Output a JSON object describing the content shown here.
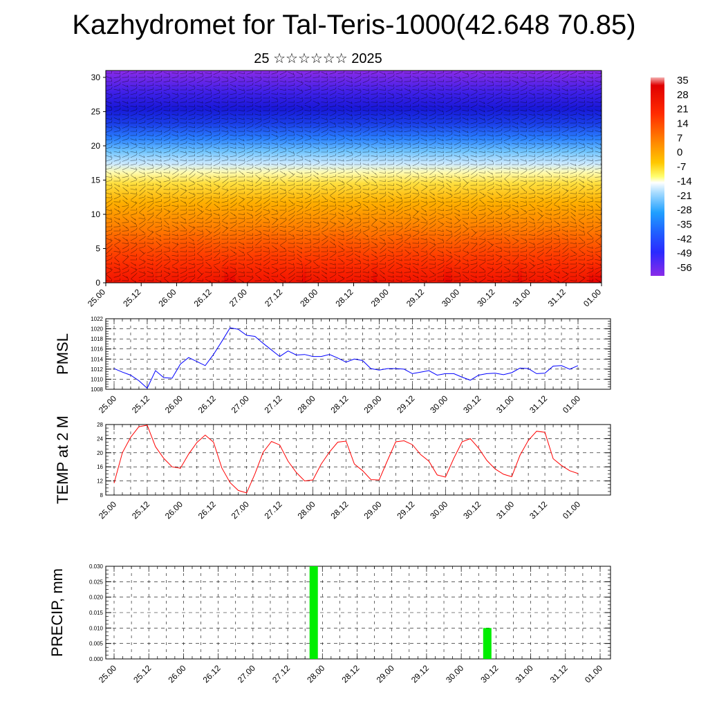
{
  "title": "Kazhydromet for Tal-Teris-1000(42.648 70.85)",
  "subtitle": "25 ☆☆☆☆☆☆ 2025",
  "chart_data": [
    {
      "type": "heatmap",
      "name": "temperature-wind-cross-section",
      "xlabel": "",
      "ylabel": "",
      "x_ticks": [
        "25.00",
        "25.12",
        "26.00",
        "26.12",
        "27.00",
        "27.12",
        "28.00",
        "28.12",
        "29.00",
        "29.12",
        "30.00",
        "30.12",
        "31.00",
        "31.12",
        "01.00"
      ],
      "y_ticks": [
        0,
        5,
        10,
        15,
        20,
        25,
        30
      ],
      "ylim": [
        0,
        31
      ],
      "colorbar_labels": [
        "35",
        "28",
        "21",
        "14",
        "7",
        "0",
        "-7",
        "-14",
        "-21",
        "-28",
        "-35",
        "-42",
        "-49",
        "-56"
      ],
      "colorbar_range": [
        -60,
        38
      ],
      "colors": [
        "#7a1fe6",
        "#2020ff",
        "#2a7dff",
        "#bfe4ff",
        "#ffff9e",
        "#ffd000",
        "#ff9a00",
        "#ff6a00",
        "#ff1a00",
        "#e00000"
      ],
      "vectors": "wind barbs overlay"
    },
    {
      "type": "line",
      "ylabel": "PMSL",
      "ylim": [
        1008,
        1022
      ],
      "y_ticks": [
        1008,
        1010,
        1012,
        1014,
        1016,
        1018,
        1020,
        1022
      ],
      "x_ticks": [
        "25.00",
        "25.12",
        "26.00",
        "26.12",
        "27.00",
        "27.12",
        "28.00",
        "28.12",
        "29.00",
        "29.12",
        "30.00",
        "30.12",
        "31.00",
        "31.12",
        "01.00"
      ],
      "line_color": "#0000ff",
      "series": [
        {
          "values": [
            1012.1,
            1011.4,
            1010.8,
            1009.7,
            1008.2,
            1011.7,
            1010.3,
            1010.2,
            1013.0,
            1014.3,
            1013.5,
            1012.7,
            1014.9,
            1017.5,
            1020.2,
            1019.9,
            1018.7,
            1018.5,
            1017.1,
            1015.8,
            1014.5,
            1015.6,
            1014.8,
            1014.9,
            1014.5,
            1014.5,
            1014.9,
            1014.2,
            1013.4,
            1014.0,
            1013.7,
            1012.1,
            1011.8,
            1012.1,
            1012.1,
            1012.0,
            1011.1,
            1011.4,
            1011.7,
            1010.8,
            1011.1,
            1011.1,
            1010.4,
            1009.8,
            1010.8,
            1011.1,
            1011.2,
            1010.9,
            1011.3,
            1012.2,
            1012.1,
            1011.1,
            1011.2,
            1012.6,
            1012.7,
            1012.0,
            1012.7
          ]
        }
      ]
    },
    {
      "type": "line",
      "ylabel": "TEMP at 2 M",
      "ylim": [
        8,
        28
      ],
      "y_ticks": [
        8,
        12,
        16,
        20,
        24,
        28
      ],
      "x_ticks": [
        "25.00",
        "25.12",
        "26.00",
        "26.12",
        "27.00",
        "27.12",
        "28.00",
        "28.12",
        "29.00",
        "29.12",
        "30.00",
        "30.12",
        "31.00",
        "31.12",
        "01.00"
      ],
      "line_color": "#ff0000",
      "series": [
        {
          "values": [
            11.4,
            20.0,
            24.4,
            27.4,
            27.8,
            21.7,
            18.4,
            16.0,
            15.6,
            19.6,
            22.9,
            25.0,
            23.0,
            15.7,
            11.5,
            9.3,
            8.6,
            14.0,
            20.2,
            23.2,
            22.2,
            17.6,
            14.4,
            12.0,
            12.3,
            16.8,
            20.2,
            23.0,
            23.3,
            16.8,
            14.9,
            12.4,
            12.3,
            17.8,
            23.1,
            23.4,
            22.3,
            19.5,
            17.6,
            13.7,
            13.1,
            18.4,
            23.1,
            24.0,
            21.3,
            17.8,
            15.4,
            13.9,
            13.2,
            19.3,
            23.5,
            26.1,
            25.8,
            18.3,
            16.4,
            14.9,
            14.1
          ]
        }
      ]
    },
    {
      "type": "bar",
      "ylabel": "PRECIP, mm",
      "ylim": [
        0,
        0.03
      ],
      "y_ticks": [
        "0.000",
        "0.005",
        "0.010",
        "0.015",
        "0.020",
        "0.025",
        "0.030"
      ],
      "x_ticks": [
        "25.00",
        "25.12",
        "26.00",
        "26.12",
        "27.00",
        "27.12",
        "28.00",
        "28.12",
        "29.00",
        "29.12",
        "30.00",
        "30.12",
        "31.00",
        "31.12",
        "01.00"
      ],
      "bar_color": "#00ee00",
      "bars": [
        {
          "x_hours": 69,
          "value": 0.03
        },
        {
          "x_hours": 129,
          "value": 0.01
        }
      ]
    }
  ]
}
